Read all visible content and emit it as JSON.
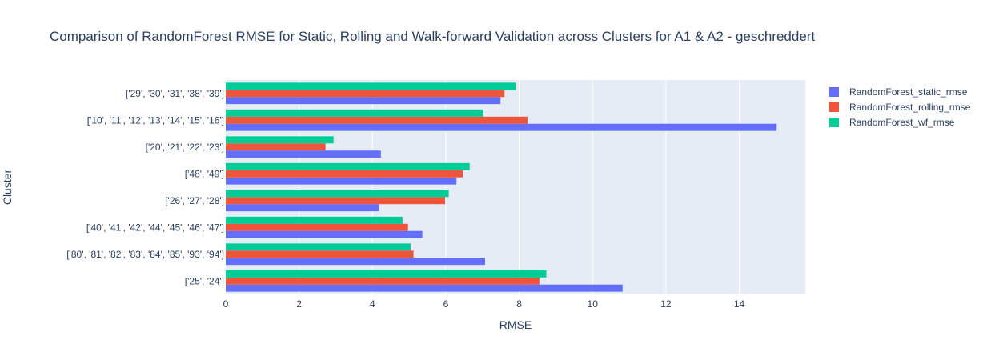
{
  "chart_data": {
    "type": "bar",
    "orientation": "horizontal",
    "title": "Comparison of RandomForest RMSE for Static, Rolling and Walk-forward Validation across Clusters for A1 & A2 -  geschreddert",
    "xlabel": "RMSE",
    "ylabel": "Cluster",
    "xlim": [
      0,
      15.8
    ],
    "x_ticks": [
      0,
      2,
      4,
      6,
      8,
      10,
      12,
      14
    ],
    "grid": true,
    "legend_position": "top-right",
    "categories": [
      "['25', '24']",
      "['80', '81', '82', '83', '84', '85', '93', '94']",
      "['40', '41', '42', '44', '45', '46', '47']",
      "['26', '27', '28']",
      "['48', '49']",
      "['20', '21', '22', '23']",
      "['10', '11', '12', '13', '14', '15', '16']",
      "['29', '30', '31', '38', '39']"
    ],
    "series": [
      {
        "name": "RandomForest_static_rmse",
        "color": "#636efa",
        "values": [
          10.82,
          7.07,
          5.36,
          4.18,
          6.29,
          4.23,
          15.02,
          7.49
        ]
      },
      {
        "name": "RandomForest_rolling_rmse",
        "color": "#ef553b",
        "values": [
          8.55,
          5.12,
          4.97,
          5.98,
          6.46,
          2.72,
          8.23,
          7.6
        ]
      },
      {
        "name": "RandomForest_wf_rmse",
        "color": "#00cc96",
        "values": [
          8.74,
          5.04,
          4.82,
          6.08,
          6.65,
          2.94,
          7.02,
          7.9
        ]
      }
    ]
  }
}
